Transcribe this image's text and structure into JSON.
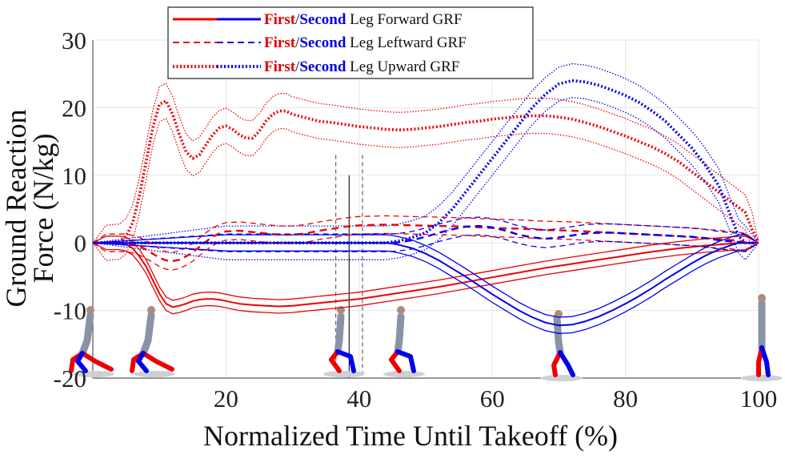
{
  "chart_data": {
    "type": "line",
    "title": "",
    "xlabel": "Normalized Time Until Takeoff (%)",
    "ylabel_lines": [
      "Ground Reaction",
      "Force (N/kg)"
    ],
    "xlim": [
      0,
      100
    ],
    "ylim": [
      -20,
      30
    ],
    "x_ticks": [
      20,
      40,
      60,
      80,
      100
    ],
    "y_ticks": [
      30,
      20,
      10,
      0,
      -10,
      -20
    ],
    "grid": true,
    "legend_position": "top-center",
    "legend": [
      {
        "style": "solid",
        "first": "First",
        "slash": "/",
        "second": "Second",
        "text": " Leg Forward GRF"
      },
      {
        "style": "dashed",
        "first": "First",
        "slash": "/",
        "second": "Second",
        "text": " Leg Leftward GRF"
      },
      {
        "style": "dotted",
        "first": "First",
        "slash": "/",
        "second": "Second",
        "text": " Leg Upward GRF"
      }
    ],
    "colors": {
      "first": "#ee0000",
      "second": "#0000ee"
    },
    "takeoff_marker": {
      "mean": 38.5,
      "sd_low": 36.5,
      "sd_high": 40.5
    },
    "series": [
      {
        "leg": "first",
        "component": "upward",
        "style": "dotted",
        "x": [
          0,
          2,
          4,
          5,
          6,
          7,
          8,
          9,
          10,
          11,
          12,
          13,
          14,
          15,
          16,
          17,
          18,
          19,
          20,
          21,
          22,
          23,
          24,
          25,
          26,
          27,
          28,
          29,
          30,
          32,
          34,
          36,
          38,
          40,
          42,
          44,
          46,
          48,
          50,
          52,
          54,
          56,
          58,
          60,
          62,
          64,
          66,
          68,
          70,
          72,
          74,
          76,
          78,
          80,
          82,
          84,
          86,
          88,
          90,
          92,
          94,
          96,
          98,
          99,
          100
        ],
        "mean": [
          0,
          0,
          0.2,
          1,
          3,
          7,
          12,
          17,
          20.5,
          21,
          19,
          16,
          13.5,
          12.5,
          13,
          14.5,
          16,
          17,
          17.3,
          16.8,
          16,
          15.5,
          15.5,
          16.5,
          18,
          19,
          19.5,
          19.5,
          19,
          18.5,
          18,
          17.8,
          17.5,
          17.2,
          17,
          16.8,
          16.7,
          16.8,
          17,
          17.2,
          17.5,
          17.8,
          18,
          18.3,
          18.5,
          18.7,
          18.8,
          18.8,
          18.6,
          18.3,
          17.8,
          17.2,
          16.5,
          15.8,
          15,
          14.2,
          13.2,
          12,
          10.5,
          9,
          7.5,
          6,
          4.5,
          2,
          0
        ],
        "band": 2.6
      },
      {
        "leg": "second",
        "component": "upward",
        "style": "dotted",
        "x": [
          0,
          20,
          40,
          44,
          46,
          48,
          50,
          52,
          54,
          56,
          58,
          60,
          62,
          64,
          66,
          68,
          70,
          72,
          74,
          76,
          78,
          80,
          82,
          84,
          86,
          88,
          90,
          92,
          94,
          95,
          96,
          97,
          98,
          100
        ],
        "mean": [
          0,
          0,
          0,
          0,
          0.3,
          0.8,
          1.5,
          3,
          5,
          7.5,
          10,
          12.5,
          15,
          17.5,
          20,
          22,
          23.5,
          24,
          23.8,
          23.3,
          22.6,
          21.8,
          20.8,
          19.5,
          18,
          16,
          14,
          11.5,
          8.5,
          6,
          3.5,
          1,
          0,
          0
        ],
        "band": 2.5
      },
      {
        "leg": "first",
        "component": "forward",
        "style": "solid",
        "x": [
          0,
          2,
          4,
          5,
          6,
          7,
          8,
          9,
          10,
          11,
          12,
          13,
          14,
          15,
          16,
          17,
          18,
          19,
          20,
          22,
          24,
          26,
          28,
          30,
          32,
          34,
          36,
          38,
          40,
          44,
          48,
          52,
          56,
          60,
          64,
          68,
          72,
          76,
          80,
          84,
          88,
          92,
          96,
          98,
          100
        ],
        "mean": [
          0,
          0,
          0,
          -0.2,
          -0.8,
          -2,
          -3.5,
          -5.5,
          -7.5,
          -9,
          -9.5,
          -9.3,
          -9,
          -8.6,
          -8.4,
          -8.3,
          -8.3,
          -8.4,
          -8.6,
          -9,
          -9.2,
          -9.3,
          -9.4,
          -9.3,
          -9.1,
          -8.9,
          -8.7,
          -8.5,
          -8.3,
          -7.7,
          -7.1,
          -6.5,
          -5.8,
          -5.1,
          -4.4,
          -3.7,
          -3.1,
          -2.5,
          -1.9,
          -1.3,
          -0.8,
          -0.4,
          -0.1,
          0,
          0
        ],
        "band": 1.0
      },
      {
        "leg": "second",
        "component": "forward",
        "style": "solid",
        "x": [
          0,
          20,
          40,
          44,
          45,
          46,
          48,
          50,
          52,
          54,
          56,
          58,
          60,
          62,
          64,
          66,
          68,
          70,
          72,
          74,
          76,
          78,
          80,
          82,
          84,
          86,
          88,
          90,
          92,
          94,
          96,
          97,
          98,
          100
        ],
        "mean": [
          0,
          0,
          0,
          0,
          -0.1,
          -0.3,
          -0.8,
          -1.6,
          -2.6,
          -3.8,
          -5,
          -6.3,
          -7.6,
          -8.8,
          -10,
          -11,
          -11.8,
          -12.2,
          -12.1,
          -11.6,
          -10.9,
          -10,
          -9,
          -7.9,
          -6.7,
          -5.4,
          -4.2,
          -3,
          -1.9,
          -1,
          -0.3,
          0,
          0,
          0
        ],
        "band": 1.2
      },
      {
        "leg": "first",
        "component": "leftward",
        "style": "dashed",
        "x": [
          0,
          2,
          4,
          5,
          6,
          7,
          8,
          9,
          10,
          11,
          12,
          13,
          14,
          15,
          16,
          17,
          18,
          19,
          20,
          22,
          24,
          26,
          28,
          30,
          32,
          34,
          36,
          38,
          40,
          44,
          48,
          52,
          56,
          60,
          64,
          68,
          72,
          76,
          80,
          84,
          88,
          92,
          96,
          98,
          100
        ],
        "mean": [
          0,
          0,
          0,
          0,
          -0.2,
          -0.5,
          -1,
          -1.6,
          -2.2,
          -2.6,
          -2.7,
          -2.5,
          -2,
          -1.4,
          -0.6,
          0.2,
          0.9,
          1.4,
          1.7,
          1.8,
          1.6,
          1.4,
          1.2,
          1.2,
          1.4,
          1.8,
          2.1,
          2.4,
          2.6,
          2.7,
          2.6,
          2.5,
          2.4,
          2.2,
          2.1,
          1.9,
          1.8,
          1.6,
          1.4,
          1.2,
          1.0,
          0.7,
          0.4,
          0.1,
          0
        ],
        "band": 1.3
      },
      {
        "leg": "second",
        "component": "leftward",
        "style": "dashed",
        "x": [
          0,
          20,
          40,
          44,
          46,
          48,
          50,
          52,
          54,
          56,
          58,
          60,
          62,
          64,
          66,
          68,
          70,
          72,
          74,
          76,
          78,
          80,
          82,
          84,
          86,
          88,
          90,
          92,
          94,
          96,
          98,
          100
        ],
        "mean": [
          0,
          0,
          0,
          0,
          0.1,
          0.4,
          0.9,
          1.5,
          2.0,
          2.4,
          2.5,
          2.3,
          1.8,
          1.2,
          0.8,
          0.6,
          0.8,
          1.1,
          1.4,
          1.5,
          1.5,
          1.4,
          1.3,
          1.2,
          1.1,
          1,
          0.9,
          0.7,
          0.4,
          0.2,
          0,
          0
        ],
        "band": 1.3
      }
    ]
  },
  "annotations": {
    "figures_description_count": 6
  }
}
